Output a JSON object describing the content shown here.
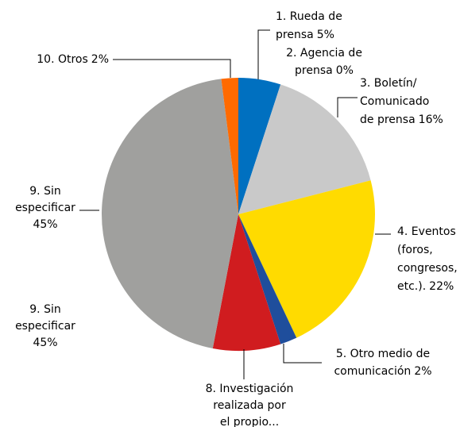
{
  "chart_data": {
    "type": "pie",
    "categories": [
      [
        "1. Rueda de",
        "prensa"
      ],
      [
        "2. Agencia de",
        "prensa"
      ],
      [
        "3. Boletín/",
        "Comunicado",
        "de prensa"
      ],
      [
        "4. Eventos",
        "(foros,",
        "congresos,",
        "etc.)."
      ],
      [
        "5. Otro medio de",
        "comunicación"
      ],
      [
        "8. Investigación",
        "realizada por",
        "el propio..."
      ],
      [
        "9. Sin",
        "especificar"
      ],
      [
        "10. Otros"
      ]
    ],
    "values": [
      5,
      0,
      16,
      22,
      2,
      8,
      45,
      2
    ],
    "value_labels": [
      "5%",
      "0%",
      "16%",
      "22%",
      "2%",
      null,
      "45%",
      "2%"
    ],
    "colors": [
      "#0070c0",
      "#7f7f7f",
      "#c9c9c9",
      "#ffdb00",
      "#1f4e9c",
      "#d01c1f",
      "#a0a09e",
      "#ff6a00"
    ]
  }
}
